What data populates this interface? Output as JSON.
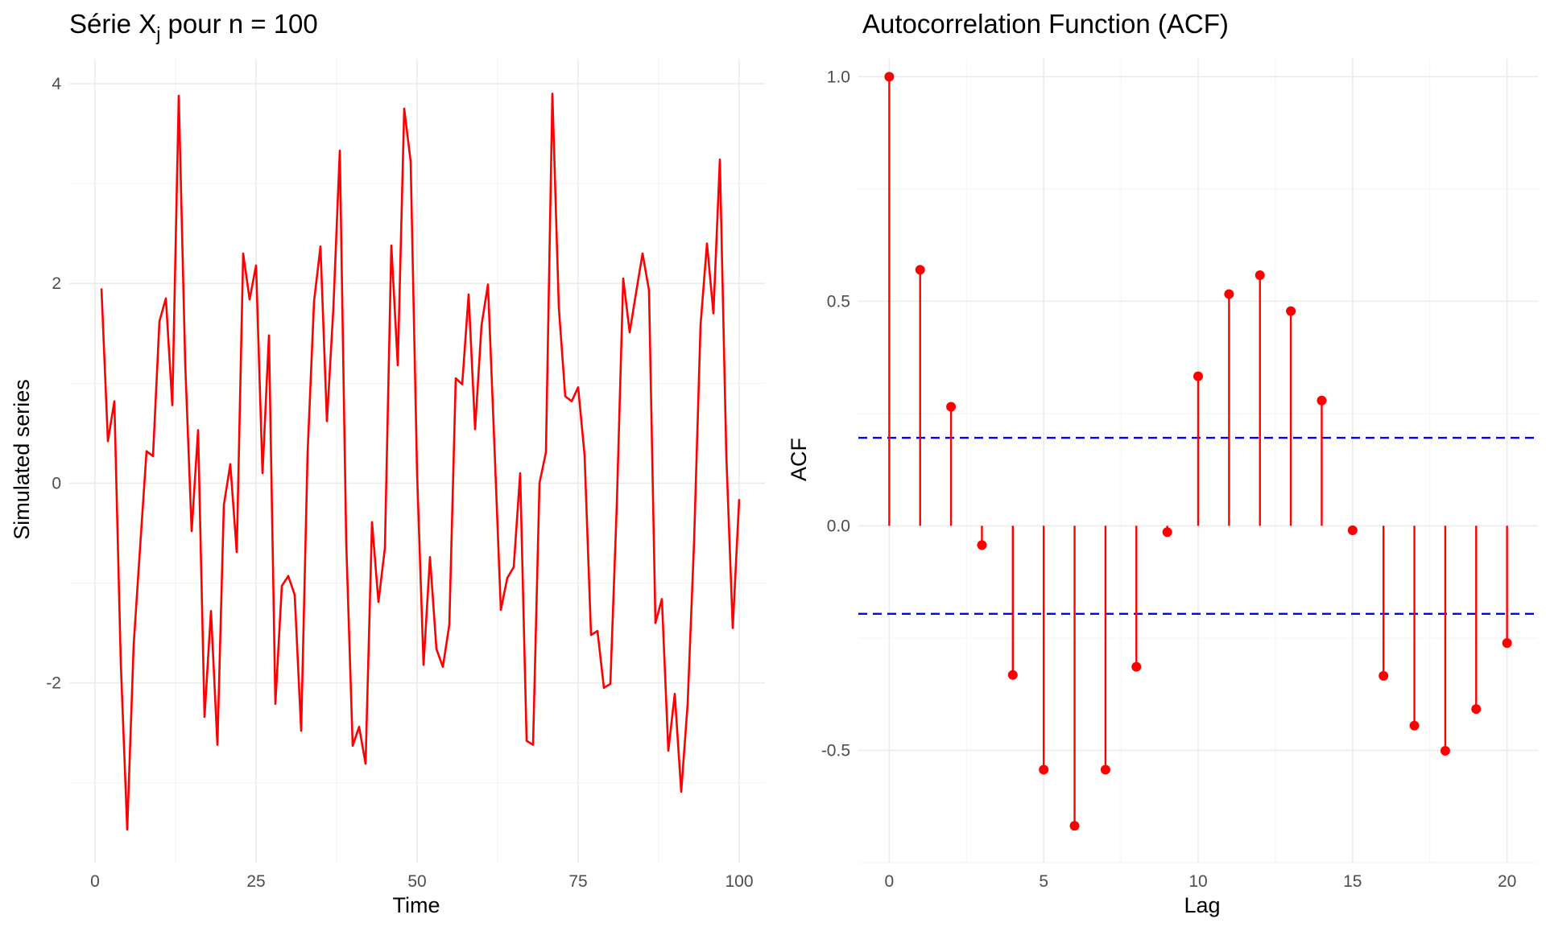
{
  "chart_data": [
    {
      "type": "line",
      "title": "Série X",
      "title_subscript": "j",
      "title_suffix": " pour n = 100",
      "xlabel": "Time",
      "ylabel": "Simulated series",
      "xlim": [
        -4,
        104
      ],
      "ylim": [
        -3.8,
        4.25
      ],
      "x_ticks": [
        0,
        25,
        50,
        75,
        100
      ],
      "x_tick_labels": [
        "0",
        "25",
        "50",
        "75",
        "100"
      ],
      "y_ticks": [
        -2,
        0,
        2,
        4
      ],
      "y_tick_labels": [
        "-2",
        "0",
        "2",
        "4"
      ],
      "grid": true,
      "legend": "none",
      "color": "#ff0000",
      "x": [
        1,
        2,
        3,
        4,
        5,
        6,
        7,
        8,
        9,
        10,
        11,
        12,
        13,
        14,
        15,
        16,
        17,
        18,
        19,
        20,
        21,
        22,
        23,
        24,
        25,
        26,
        27,
        28,
        29,
        30,
        31,
        32,
        33,
        34,
        35,
        36,
        37,
        38,
        39,
        40,
        41,
        42,
        43,
        44,
        45,
        46,
        47,
        48,
        49,
        50,
        51,
        52,
        53,
        54,
        55,
        56,
        57,
        58,
        59,
        60,
        61,
        62,
        63,
        64,
        65,
        66,
        67,
        68,
        69,
        70,
        71,
        72,
        73,
        74,
        75,
        76,
        77,
        78,
        79,
        80,
        81,
        82,
        83,
        84,
        85,
        86,
        87,
        88,
        89,
        90,
        91,
        92,
        93,
        94,
        95,
        96,
        97,
        98,
        99,
        100
      ],
      "y": [
        1.95,
        0.42,
        0.82,
        -1.8,
        -3.47,
        -1.62,
        -0.64,
        0.32,
        0.27,
        1.62,
        1.85,
        0.78,
        3.88,
        1.2,
        -0.48,
        0.53,
        -2.34,
        -1.28,
        -2.62,
        -0.22,
        0.19,
        -0.69,
        2.3,
        1.84,
        2.18,
        0.1,
        1.48,
        -2.21,
        -1.03,
        -0.93,
        -1.12,
        -2.48,
        0.3,
        1.82,
        2.37,
        0.62,
        1.75,
        3.33,
        -0.6,
        -2.63,
        -2.44,
        -2.81,
        -0.39,
        -1.19,
        -0.65,
        2.38,
        1.18,
        3.75,
        3.22,
        0.09,
        -1.82,
        -0.74,
        -1.66,
        -1.84,
        -1.42,
        1.05,
        0.99,
        1.89,
        0.54,
        1.58,
        1.99,
        0.38,
        -1.27,
        -0.95,
        -0.84,
        0.1,
        -2.58,
        -2.62,
        0.0,
        0.31,
        3.9,
        1.76,
        0.87,
        0.82,
        0.96,
        0.28,
        -1.52,
        -1.48,
        -2.05,
        -2.01,
        -0.22,
        2.05,
        1.51,
        1.91,
        2.3,
        1.93,
        -1.4,
        -1.16,
        -2.68,
        -2.11,
        -3.09,
        -2.21,
        -0.58,
        1.58,
        2.4,
        1.7,
        3.24,
        0.28,
        -1.45,
        -0.16
      ]
    },
    {
      "type": "stem",
      "title": "Autocorrelation Function (ACF)",
      "xlabel": "Lag",
      "ylabel": "ACF",
      "xlim": [
        -1,
        21
      ],
      "ylim": [
        -0.75,
        1.04
      ],
      "x_ticks": [
        0,
        5,
        10,
        15,
        20
      ],
      "x_tick_labels": [
        "0",
        "5",
        "10",
        "15",
        "20"
      ],
      "y_ticks": [
        -0.5,
        0.0,
        0.5,
        1.0
      ],
      "y_tick_labels": [
        "-0.5",
        "0.0",
        "0.5",
        "1.0"
      ],
      "grid": true,
      "legend": "none",
      "color": "#ff0000",
      "confidence_color": "#0000ff",
      "confidence_bounds": [
        0.196,
        -0.196
      ],
      "lags": [
        0,
        1,
        2,
        3,
        4,
        5,
        6,
        7,
        8,
        9,
        10,
        11,
        12,
        13,
        14,
        15,
        16,
        17,
        18,
        19,
        20
      ],
      "values": [
        1.0,
        0.57,
        0.265,
        -0.043,
        -0.332,
        -0.543,
        -0.668,
        -0.543,
        -0.314,
        -0.014,
        0.333,
        0.516,
        0.558,
        0.478,
        0.279,
        -0.01,
        -0.334,
        -0.445,
        -0.501,
        -0.408,
        -0.261
      ]
    }
  ]
}
